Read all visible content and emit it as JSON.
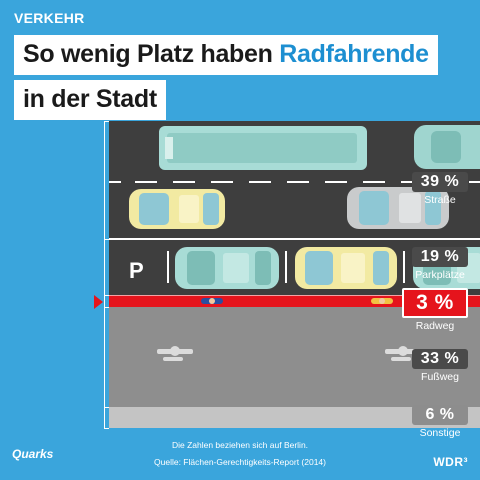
{
  "header": {
    "tag": "VERKEHR",
    "title_line1_a": "So wenig Platz haben ",
    "title_line1_b": "Radfahrende",
    "title_line2": "in der Stadt"
  },
  "segments": [
    {
      "percent": "39 %",
      "label": "Straße",
      "share": 39
    },
    {
      "percent": "19 %",
      "label": "Parkplätze",
      "share": 19
    },
    {
      "percent": "3 %",
      "label": "Radweg",
      "share": 3
    },
    {
      "percent": "33 %",
      "label": "Fußweg",
      "share": 33
    },
    {
      "percent": "6 %",
      "label": "Sonstige",
      "share": 6
    }
  ],
  "parking_sign": "P",
  "footer": {
    "note": "Die Zahlen beziehen sich auf Berlin.",
    "source": "Quelle: Flächen-Gerechtigkeits-Report (2014)",
    "brand_left": "Quarks",
    "brand_right": "WDR³"
  },
  "colors": {
    "background": "#3aa5dc",
    "accent": "#1d8fd1",
    "road": "#3e3e3e",
    "bike_lane": "#e5141c",
    "sidewalk": "#8e8e8e",
    "other": "#c4c4c4",
    "badge": "#4a4a4a"
  }
}
